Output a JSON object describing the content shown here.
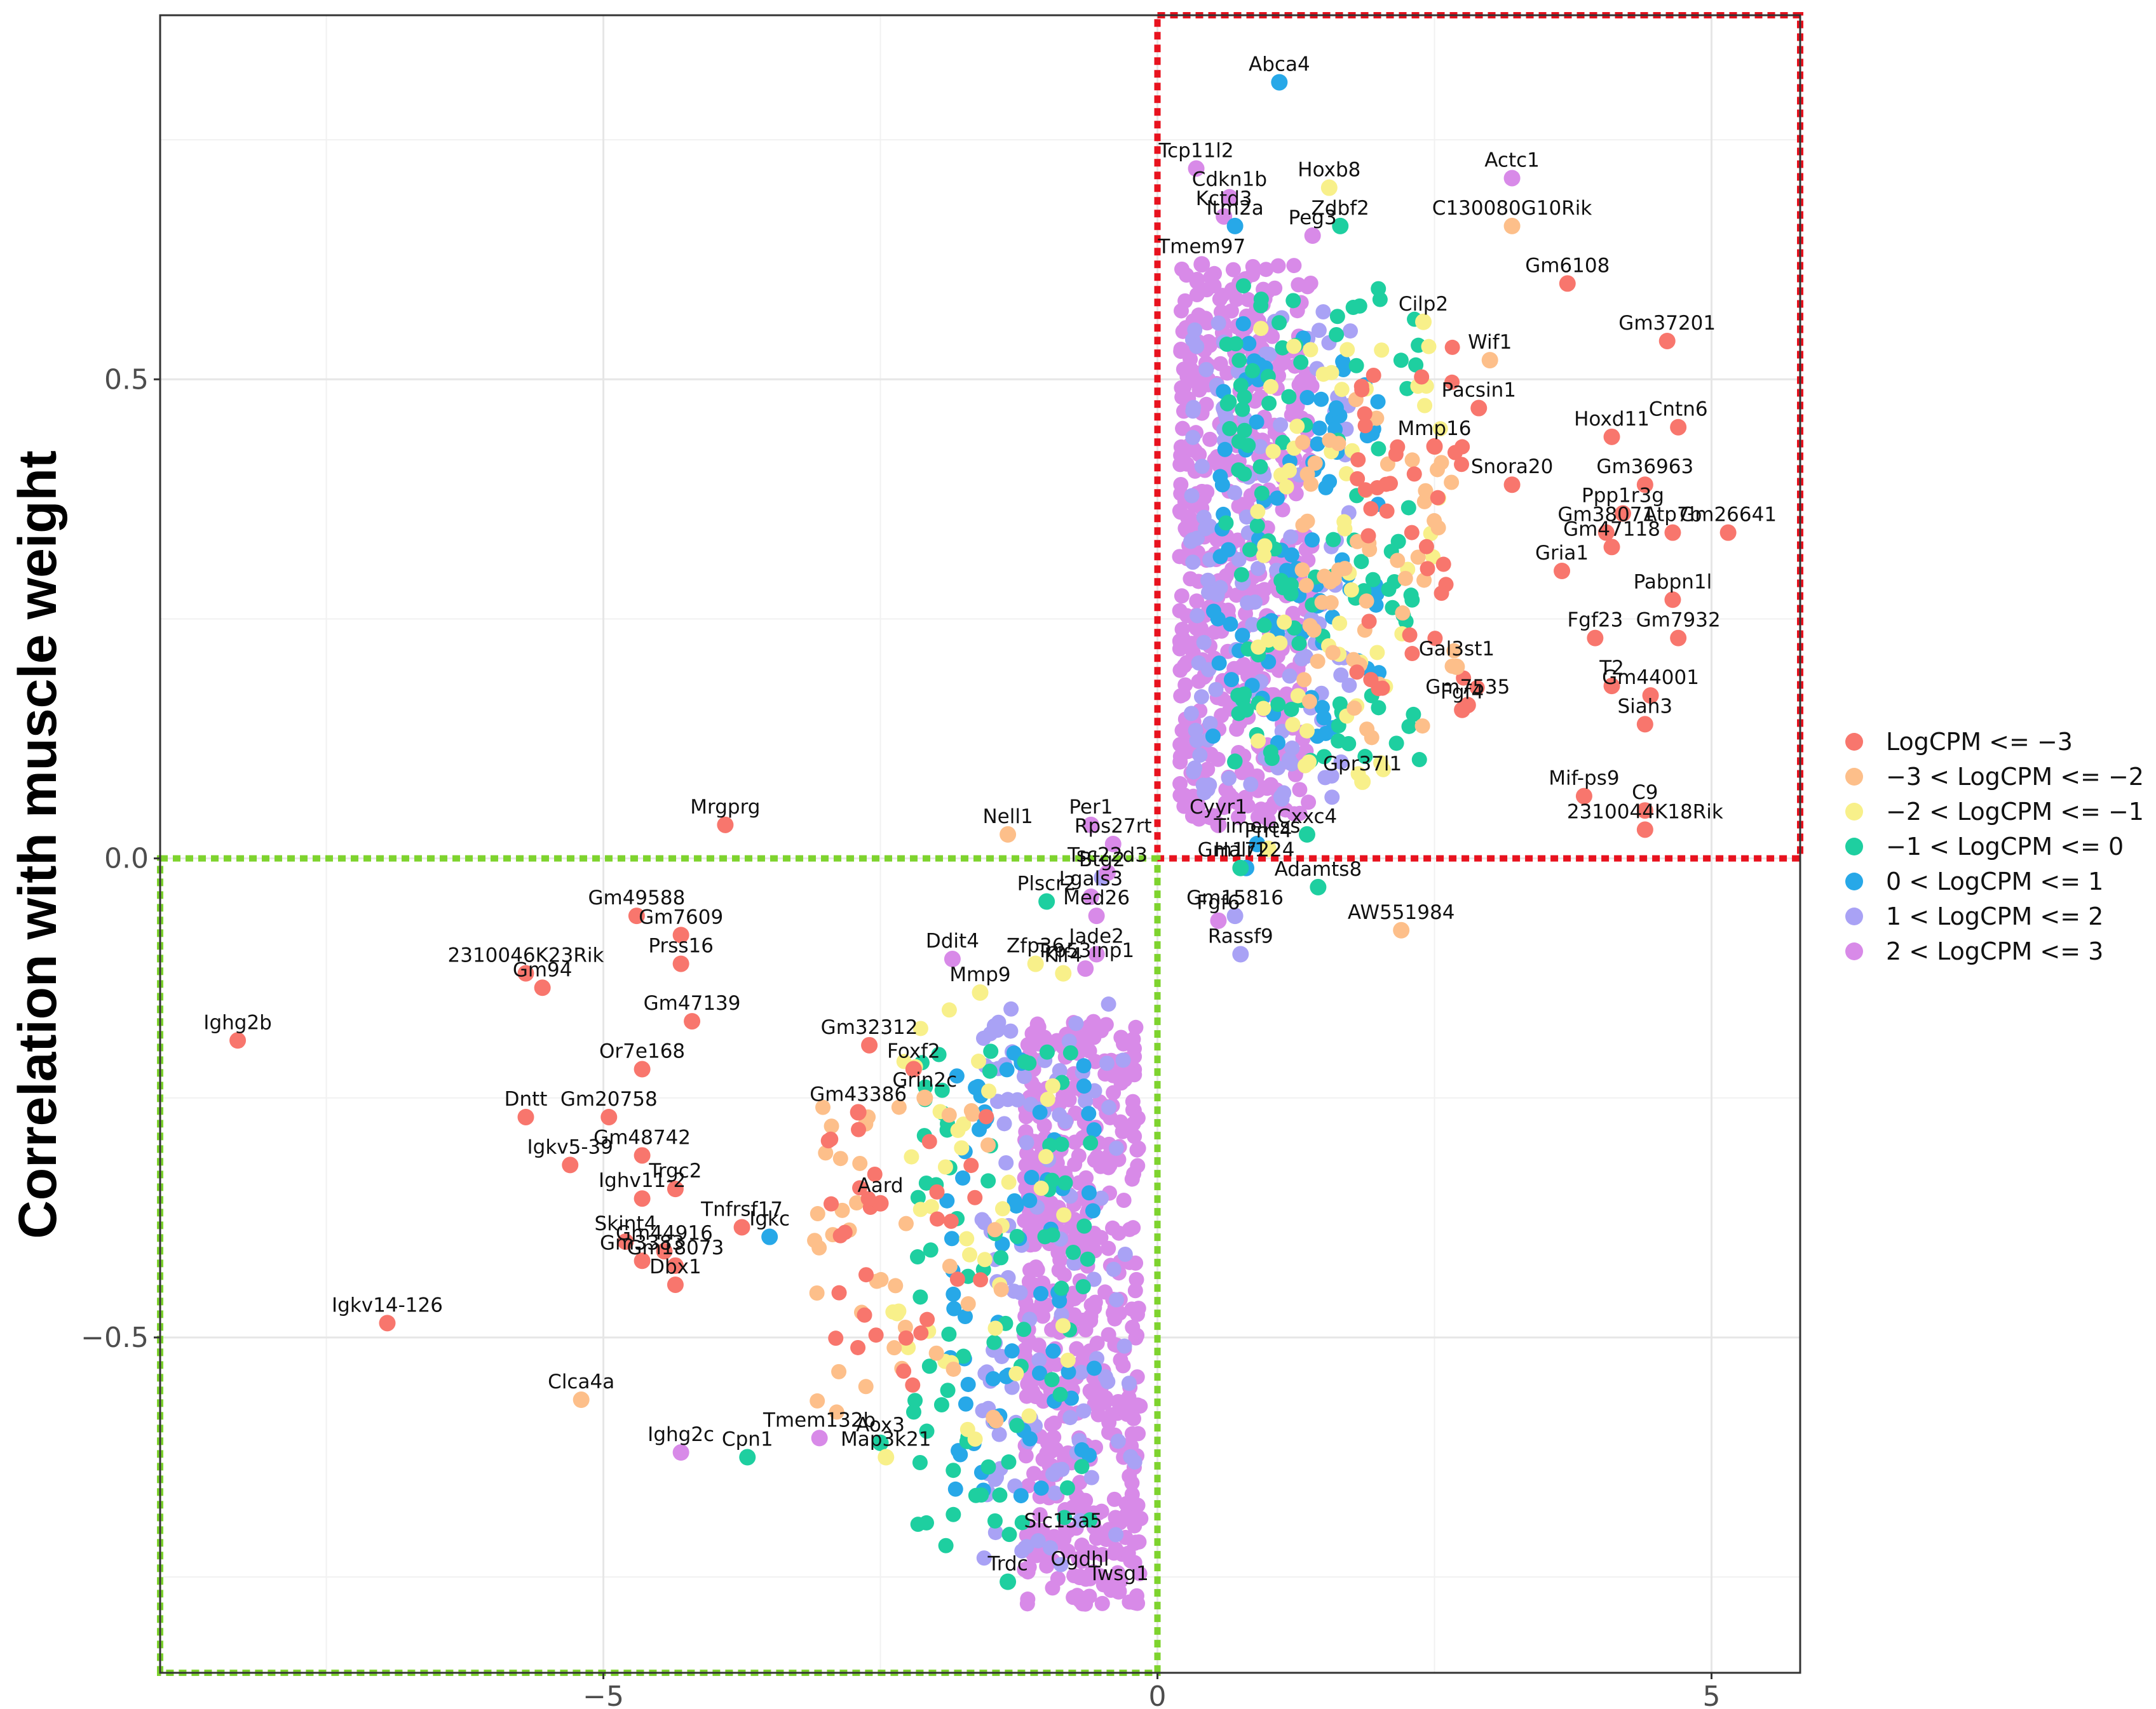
{
  "chart_data": {
    "type": "scatter",
    "title": "",
    "xlabel": "",
    "ylabel": "Correlation with muscle weight",
    "xlim": [
      -9,
      5.8
    ],
    "ylim": [
      -0.85,
      0.88
    ],
    "x_ticks": [
      -5,
      0,
      5
    ],
    "y_ticks": [
      -0.5,
      0.0,
      0.5
    ],
    "x_tick_labels": [
      "−5",
      "0",
      "5"
    ],
    "y_tick_labels": [
      "−0.5",
      "0.0",
      "0.5"
    ],
    "grid": true,
    "legend_position": "right",
    "series": [
      {
        "name": "LogCPM <= −3",
        "color": "#F8766D"
      },
      {
        "name": "−3 < LogCPM <= −2",
        "color": "#FDBF8A"
      },
      {
        "name": "−2 < LogCPM <= −1",
        "color": "#F8F08A"
      },
      {
        "name": "−1 < LogCPM <= 0",
        "color": "#1ECFA0"
      },
      {
        "name": "0 < LogCPM <= 1",
        "color": "#27A8E8"
      },
      {
        "name": "1 < LogCPM <= 2",
        "color": "#A9A2F5"
      },
      {
        "name": "2 < LogCPM <= 3",
        "color": "#D88AE8"
      }
    ],
    "highlight_regions": [
      {
        "name": "positive-region",
        "x": [
          0,
          5.8
        ],
        "y": [
          0,
          0.88
        ],
        "color": "#E8121E"
      },
      {
        "name": "negative-region",
        "x": [
          -9,
          0
        ],
        "y": [
          -0.85,
          0
        ],
        "color": "#7ED32E"
      }
    ],
    "labeled_points": [
      {
        "label": "Abca4",
        "x": 1.1,
        "y": 0.81,
        "s": 4
      },
      {
        "label": "Tcp11l2",
        "x": 0.35,
        "y": 0.72,
        "s": 6
      },
      {
        "label": "Cdkn1b",
        "x": 0.65,
        "y": 0.69,
        "s": 6
      },
      {
        "label": "Hoxb8",
        "x": 1.55,
        "y": 0.7,
        "s": 2
      },
      {
        "label": "Actc1",
        "x": 3.2,
        "y": 0.71,
        "s": 6
      },
      {
        "label": "Kctd3",
        "x": 0.6,
        "y": 0.67,
        "s": 6
      },
      {
        "label": "Itm2a",
        "x": 0.7,
        "y": 0.66,
        "s": 4
      },
      {
        "label": "Zdbf2",
        "x": 1.65,
        "y": 0.66,
        "s": 3
      },
      {
        "label": "C130080G10Rik",
        "x": 3.2,
        "y": 0.66,
        "s": 1
      },
      {
        "label": "Tmem97",
        "x": 0.4,
        "y": 0.62,
        "s": 6
      },
      {
        "label": "Peg3",
        "x": 1.4,
        "y": 0.65,
        "s": 6
      },
      {
        "label": "Gm6108",
        "x": 3.7,
        "y": 0.6,
        "s": 0
      },
      {
        "label": "Cilp2",
        "x": 2.4,
        "y": 0.56,
        "s": 2
      },
      {
        "label": "Gm37201",
        "x": 4.6,
        "y": 0.54,
        "s": 0
      },
      {
        "label": "Wif1",
        "x": 3.0,
        "y": 0.52,
        "s": 1
      },
      {
        "label": "Pacsin1",
        "x": 2.9,
        "y": 0.47,
        "s": 0
      },
      {
        "label": "Hoxd11",
        "x": 4.1,
        "y": 0.44,
        "s": 0
      },
      {
        "label": "Cntn6",
        "x": 4.7,
        "y": 0.45,
        "s": 0
      },
      {
        "label": "Mmp16",
        "x": 2.5,
        "y": 0.43,
        "s": 0
      },
      {
        "label": "Gm36963",
        "x": 4.4,
        "y": 0.39,
        "s": 0
      },
      {
        "label": "Snora20",
        "x": 3.2,
        "y": 0.39,
        "s": 0
      },
      {
        "label": "Gm26641",
        "x": 5.15,
        "y": 0.34,
        "s": 0
      },
      {
        "label": "Ppp1r3g",
        "x": 4.2,
        "y": 0.36,
        "s": 0
      },
      {
        "label": "Gm38071",
        "x": 4.05,
        "y": 0.34,
        "s": 0
      },
      {
        "label": "Atp7b",
        "x": 4.65,
        "y": 0.34,
        "s": 0
      },
      {
        "label": "Gm47118",
        "x": 4.1,
        "y": 0.325,
        "s": 0
      },
      {
        "label": "Gria1",
        "x": 3.65,
        "y": 0.3,
        "s": 0
      },
      {
        "label": "Fgf23",
        "x": 3.95,
        "y": 0.23,
        "s": 0
      },
      {
        "label": "Pabpn1l",
        "x": 4.65,
        "y": 0.27,
        "s": 0
      },
      {
        "label": "Gm7932",
        "x": 4.7,
        "y": 0.23,
        "s": 0
      },
      {
        "label": "Gal3st1",
        "x": 2.7,
        "y": 0.2,
        "s": 1
      },
      {
        "label": "T2",
        "x": 4.1,
        "y": 0.18,
        "s": 0
      },
      {
        "label": "Gm7535",
        "x": 2.8,
        "y": 0.16,
        "s": 0
      },
      {
        "label": "Gm44001",
        "x": 4.45,
        "y": 0.17,
        "s": 0
      },
      {
        "label": "Fgf4",
        "x": 2.75,
        "y": 0.155,
        "s": 0
      },
      {
        "label": "Siah3",
        "x": 4.4,
        "y": 0.14,
        "s": 0
      },
      {
        "label": "Gpr37l1",
        "x": 1.85,
        "y": 0.08,
        "s": 2
      },
      {
        "label": "Mif-ps9",
        "x": 3.85,
        "y": 0.065,
        "s": 0
      },
      {
        "label": "C9",
        "x": 4.4,
        "y": 0.05,
        "s": 0
      },
      {
        "label": "2310044K18Rik",
        "x": 4.4,
        "y": 0.03,
        "s": 0
      },
      {
        "label": "Per1",
        "x": -0.6,
        "y": 0.035,
        "s": 6
      },
      {
        "label": "Cyyr1",
        "x": 0.55,
        "y": 0.035,
        "s": 6
      },
      {
        "label": "Cxxc4",
        "x": 1.35,
        "y": 0.025,
        "s": 3
      },
      {
        "label": "Rps27rt",
        "x": -0.4,
        "y": 0.015,
        "s": 6
      },
      {
        "label": "Timeless",
        "x": 0.9,
        "y": 0.015,
        "s": 4
      },
      {
        "label": "Prrt4",
        "x": 1.0,
        "y": 0.01,
        "s": 2
      },
      {
        "label": "Nell1",
        "x": -1.35,
        "y": 0.025,
        "s": 1
      },
      {
        "label": "Mrgprg",
        "x": -3.9,
        "y": 0.035,
        "s": 0
      },
      {
        "label": "Btg2",
        "x": -0.5,
        "y": -0.02,
        "s": 5
      },
      {
        "label": "Tsc22d3",
        "x": -0.45,
        "y": -0.015,
        "s": 6
      },
      {
        "label": "Gm17224",
        "x": 0.8,
        "y": -0.01,
        "s": 4
      },
      {
        "label": "Plscr2",
        "x": -1.0,
        "y": -0.045,
        "s": 3
      },
      {
        "label": "Lgals3",
        "x": -0.6,
        "y": -0.04,
        "s": 6
      },
      {
        "label": "Halr1",
        "x": 0.75,
        "y": -0.01,
        "s": 3
      },
      {
        "label": "Adamts8",
        "x": 1.45,
        "y": -0.03,
        "s": 3
      },
      {
        "label": "Med26",
        "x": -0.55,
        "y": -0.06,
        "s": 6
      },
      {
        "label": "Fgf6",
        "x": 0.55,
        "y": -0.065,
        "s": 6
      },
      {
        "label": "Gm15816",
        "x": 0.7,
        "y": -0.06,
        "s": 5
      },
      {
        "label": "AW551984",
        "x": 2.2,
        "y": -0.075,
        "s": 1
      },
      {
        "label": "Ddit4",
        "x": -1.85,
        "y": -0.105,
        "s": 6
      },
      {
        "label": "Zfp36",
        "x": -1.1,
        "y": -0.11,
        "s": 2
      },
      {
        "label": "Klf4",
        "x": -0.85,
        "y": -0.12,
        "s": 2
      },
      {
        "label": "Jade2",
        "x": -0.55,
        "y": -0.1,
        "s": 6
      },
      {
        "label": "Rassf9",
        "x": 0.75,
        "y": -0.1,
        "s": 5
      },
      {
        "label": "Trp53inp1",
        "x": -0.65,
        "y": -0.115,
        "s": 6
      },
      {
        "label": "Mmp9",
        "x": -1.6,
        "y": -0.14,
        "s": 2
      },
      {
        "label": "Gm49588",
        "x": -4.7,
        "y": -0.06,
        "s": 0
      },
      {
        "label": "Gm7609",
        "x": -4.3,
        "y": -0.08,
        "s": 0
      },
      {
        "label": "2310046K23Rik",
        "x": -5.7,
        "y": -0.12,
        "s": 0
      },
      {
        "label": "Prss16",
        "x": -4.3,
        "y": -0.11,
        "s": 0
      },
      {
        "label": "Gm94",
        "x": -5.55,
        "y": -0.135,
        "s": 0
      },
      {
        "label": "Gm47139",
        "x": -4.2,
        "y": -0.17,
        "s": 0
      },
      {
        "label": "Ighg2b",
        "x": -8.3,
        "y": -0.19,
        "s": 0
      },
      {
        "label": "Gm32312",
        "x": -2.6,
        "y": -0.195,
        "s": 0
      },
      {
        "label": "Foxf2",
        "x": -2.2,
        "y": -0.22,
        "s": 0
      },
      {
        "label": "Or7e168",
        "x": -4.65,
        "y": -0.22,
        "s": 0
      },
      {
        "label": "Grin2c",
        "x": -2.1,
        "y": -0.25,
        "s": 1
      },
      {
        "label": "Dntt",
        "x": -5.7,
        "y": -0.27,
        "s": 0
      },
      {
        "label": "Gm20758",
        "x": -4.95,
        "y": -0.27,
        "s": 0
      },
      {
        "label": "Gm43386",
        "x": -2.7,
        "y": -0.265,
        "s": 0
      },
      {
        "label": "Gm48742",
        "x": -4.65,
        "y": -0.31,
        "s": 0
      },
      {
        "label": "Igkv5-39",
        "x": -5.3,
        "y": -0.32,
        "s": 0
      },
      {
        "label": "Trgc2",
        "x": -4.35,
        "y": -0.345,
        "s": 0
      },
      {
        "label": "Ighv11-2",
        "x": -4.65,
        "y": -0.355,
        "s": 0
      },
      {
        "label": "Aard",
        "x": -2.5,
        "y": -0.36,
        "s": 0
      },
      {
        "label": "Tnfrsf17",
        "x": -3.75,
        "y": -0.385,
        "s": 0
      },
      {
        "label": "Skint4",
        "x": -4.8,
        "y": -0.4,
        "s": 0
      },
      {
        "label": "Gm44916",
        "x": -4.45,
        "y": -0.41,
        "s": 0
      },
      {
        "label": "Igkc",
        "x": -3.5,
        "y": -0.395,
        "s": 4
      },
      {
        "label": "Gm3383",
        "x": -4.65,
        "y": -0.42,
        "s": 0
      },
      {
        "label": "Gm18073",
        "x": -4.35,
        "y": -0.425,
        "s": 0
      },
      {
        "label": "Dbx1",
        "x": -4.35,
        "y": -0.445,
        "s": 0
      },
      {
        "label": "Igkv14-126",
        "x": -6.95,
        "y": -0.485,
        "s": 0
      },
      {
        "label": "Clca4a",
        "x": -5.2,
        "y": -0.565,
        "s": 1
      },
      {
        "label": "Tmem132b",
        "x": -3.05,
        "y": -0.605,
        "s": 6
      },
      {
        "label": "Aox3",
        "x": -2.5,
        "y": -0.61,
        "s": 3
      },
      {
        "label": "Ighg2c",
        "x": -4.3,
        "y": -0.62,
        "s": 6
      },
      {
        "label": "Cpn1",
        "x": -3.7,
        "y": -0.625,
        "s": 3
      },
      {
        "label": "Map3k21",
        "x": -2.45,
        "y": -0.625,
        "s": 2
      },
      {
        "label": "Slc15a5",
        "x": -0.85,
        "y": -0.71,
        "s": 6
      },
      {
        "label": "Ogdhl",
        "x": -0.7,
        "y": -0.75,
        "s": 6
      },
      {
        "label": "Trdc",
        "x": -1.35,
        "y": -0.755,
        "s": 3
      },
      {
        "label": "Twsg1",
        "x": -0.35,
        "y": -0.765,
        "s": 6
      }
    ],
    "point_clouds": [
      {
        "series": 6,
        "n": 520,
        "x": [
          0.2,
          1.4
        ],
        "y": [
          0.04,
          0.62
        ]
      },
      {
        "series": 5,
        "n": 130,
        "x": [
          0.3,
          1.8
        ],
        "y": [
          0.06,
          0.58
        ]
      },
      {
        "series": 4,
        "n": 90,
        "x": [
          0.5,
          2.0
        ],
        "y": [
          0.12,
          0.56
        ]
      },
      {
        "series": 3,
        "n": 110,
        "x": [
          0.6,
          2.4
        ],
        "y": [
          0.1,
          0.6
        ]
      },
      {
        "series": 2,
        "n": 60,
        "x": [
          0.9,
          2.6
        ],
        "y": [
          0.08,
          0.56
        ]
      },
      {
        "series": 1,
        "n": 55,
        "x": [
          1.3,
          2.7
        ],
        "y": [
          0.12,
          0.48
        ]
      },
      {
        "series": 0,
        "n": 40,
        "x": [
          1.8,
          2.9
        ],
        "y": [
          0.14,
          0.55
        ]
      },
      {
        "series": 6,
        "n": 520,
        "x": [
          -1.2,
          -0.15
        ],
        "y": [
          -0.78,
          -0.17
        ]
      },
      {
        "series": 5,
        "n": 110,
        "x": [
          -1.6,
          -0.2
        ],
        "y": [
          -0.74,
          -0.15
        ]
      },
      {
        "series": 4,
        "n": 70,
        "x": [
          -1.9,
          -0.5
        ],
        "y": [
          -0.68,
          -0.2
        ]
      },
      {
        "series": 3,
        "n": 80,
        "x": [
          -2.2,
          -0.6
        ],
        "y": [
          -0.72,
          -0.2
        ]
      },
      {
        "series": 2,
        "n": 40,
        "x": [
          -2.4,
          -0.8
        ],
        "y": [
          -0.62,
          -0.15
        ]
      },
      {
        "series": 1,
        "n": 40,
        "x": [
          -3.1,
          -1.3
        ],
        "y": [
          -0.6,
          -0.25
        ]
      },
      {
        "series": 0,
        "n": 30,
        "x": [
          -3.0,
          -1.5
        ],
        "y": [
          -0.55,
          -0.25
        ]
      }
    ]
  }
}
